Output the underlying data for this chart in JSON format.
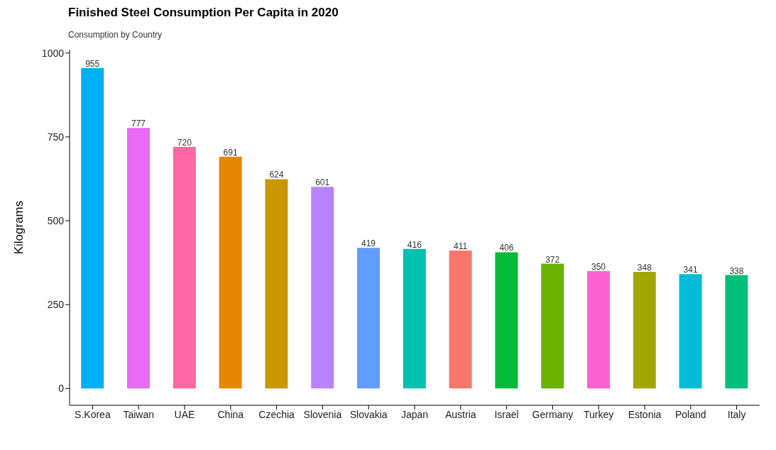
{
  "chart_data": {
    "type": "bar",
    "title": "Finished Steel Consumption Per Capita in 2020",
    "subtitle": "Consumption by Country",
    "ylabel": "Kilograms",
    "categories": [
      "S.Korea",
      "Taiwan",
      "UAE",
      "China",
      "Czechia",
      "Slovenia",
      "Slovakia",
      "Japan",
      "Austria",
      "Israel",
      "Germany",
      "Turkey",
      "Estonia",
      "Poland",
      "Italy"
    ],
    "values": [
      955,
      777,
      720,
      691,
      624,
      601,
      419,
      416,
      411,
      406,
      372,
      350,
      348,
      341,
      338
    ],
    "colors": [
      "#00b0f6",
      "#e76bf3",
      "#ff67a4",
      "#e58700",
      "#c99800",
      "#b983ff",
      "#619cff",
      "#00c0af",
      "#f8766d",
      "#00ba38",
      "#6bb100",
      "#fd61d1",
      "#a3a500",
      "#00bcd8",
      "#00bf7d"
    ],
    "ylim": [
      -50,
      1010
    ],
    "yticks": [
      0,
      250,
      500,
      750,
      1000
    ],
    "grid": false,
    "data_labels": true
  }
}
